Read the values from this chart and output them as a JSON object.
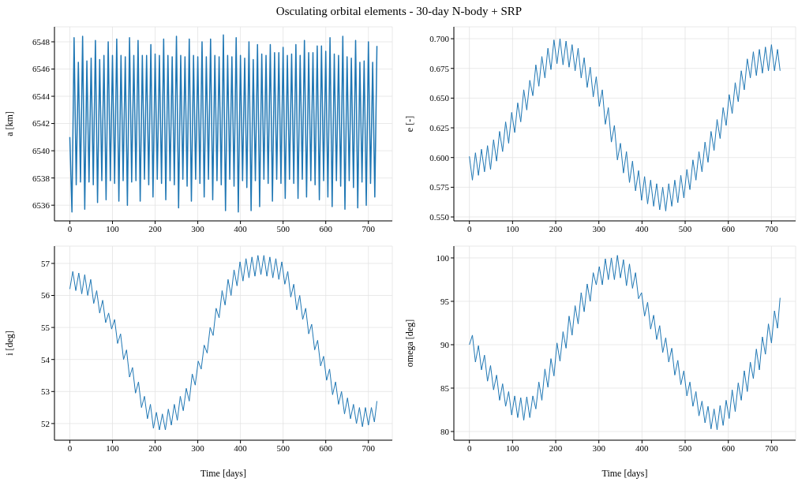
{
  "chart_data": [
    {
      "type": "line",
      "title": "Osculating orbital elements - 30-day N-body + SRP",
      "ylabel": "a [km]",
      "x": [
        0,
        5,
        10,
        15,
        20,
        25,
        30,
        35,
        40,
        45,
        50,
        55,
        60,
        65,
        70,
        75,
        80,
        85,
        90,
        95,
        100,
        105,
        110,
        115,
        120,
        125,
        130,
        135,
        140,
        145,
        150,
        155,
        160,
        165,
        170,
        175,
        180,
        185,
        190,
        195,
        200,
        205,
        210,
        215,
        220,
        225,
        230,
        235,
        240,
        245,
        250,
        255,
        260,
        265,
        270,
        275,
        280,
        285,
        290,
        295,
        300,
        305,
        310,
        315,
        320,
        325,
        330,
        335,
        340,
        345,
        350,
        355,
        360,
        365,
        370,
        375,
        380,
        385,
        390,
        395,
        400,
        405,
        410,
        415,
        420,
        425,
        430,
        435,
        440,
        445,
        450,
        455,
        460,
        465,
        470,
        475,
        480,
        485,
        490,
        495,
        500,
        505,
        510,
        515,
        520,
        525,
        530,
        535,
        540,
        545,
        550,
        555,
        560,
        565,
        570,
        575,
        580,
        585,
        590,
        595,
        600,
        605,
        610,
        615,
        620,
        625,
        630,
        635,
        640,
        645,
        650,
        655,
        660,
        665,
        670,
        675,
        680,
        685,
        690,
        695,
        700,
        705,
        710,
        715,
        720
      ],
      "series": [
        {
          "color": "#1f77b4",
          "values": [
            6541.0,
            6535.5,
            6548.3,
            6537.5,
            6546.5,
            6537.7,
            6548.4,
            6535.7,
            6546.6,
            6537.7,
            6546.8,
            6537.5,
            6548.1,
            6536.2,
            6546.7,
            6537.8,
            6547.0,
            6536.4,
            6548.0,
            6537.8,
            6547.0,
            6537.6,
            6548.2,
            6536.3,
            6547.0,
            6537.8,
            6546.9,
            6536.0,
            6548.3,
            6537.7,
            6547.0,
            6537.8,
            6548.1,
            6536.3,
            6547.0,
            6537.9,
            6547.0,
            6537.5,
            6547.8,
            6536.6,
            6547.1,
            6537.9,
            6547.0,
            6537.6,
            6548.2,
            6536.4,
            6547.0,
            6537.8,
            6546.9,
            6537.5,
            6548.4,
            6535.8,
            6547.0,
            6537.9,
            6546.9,
            6537.4,
            6548.2,
            6536.3,
            6547.0,
            6537.9,
            6546.9,
            6537.6,
            6548.0,
            6536.6,
            6546.9,
            6537.9,
            6548.2,
            6536.4,
            6547.0,
            6537.8,
            6546.9,
            6537.5,
            6548.5,
            6535.6,
            6547.0,
            6537.9,
            6546.9,
            6537.4,
            6548.3,
            6535.5,
            6547.0,
            6537.8,
            6546.8,
            6537.3,
            6548.0,
            6535.6,
            6546.7,
            6537.8,
            6547.8,
            6535.9,
            6547.1,
            6537.9,
            6547.0,
            6537.6,
            6547.8,
            6536.3,
            6547.2,
            6537.9,
            6547.2,
            6537.6,
            6547.6,
            6536.5,
            6547.0,
            6537.9,
            6547.1,
            6537.6,
            6547.8,
            6536.5,
            6547.0,
            6537.9,
            6548.1,
            6536.6,
            6547.2,
            6537.8,
            6547.2,
            6537.5,
            6547.7,
            6536.4,
            6547.7,
            6537.8,
            6547.3,
            6536.6,
            6548.3,
            6535.9,
            6547.1,
            6537.8,
            6547.0,
            6537.4,
            6548.4,
            6535.7,
            6546.9,
            6537.8,
            6546.8,
            6537.3,
            6548.1,
            6535.8,
            6546.5,
            6537.7,
            6546.6,
            6536.0,
            6548.0,
            6537.6,
            6546.5,
            6536.6,
            6547.7
          ]
        }
      ],
      "xlim": [
        -36,
        756
      ],
      "ylim": [
        6534.85,
        6549.1
      ],
      "xticks": [
        0,
        100,
        200,
        300,
        400,
        500,
        600,
        700
      ],
      "yticks": [
        6536,
        6538,
        6540,
        6542,
        6544,
        6546,
        6548
      ],
      "grid": true
    },
    {
      "type": "line",
      "ylabel": "e [-]",
      "x": [
        0,
        7,
        14,
        21,
        28,
        35,
        42,
        49,
        56,
        63,
        70,
        77,
        84,
        91,
        98,
        105,
        112,
        119,
        126,
        133,
        140,
        147,
        154,
        161,
        168,
        175,
        182,
        189,
        196,
        203,
        210,
        217,
        224,
        231,
        238,
        245,
        252,
        259,
        266,
        273,
        280,
        287,
        294,
        301,
        308,
        315,
        322,
        329,
        336,
        343,
        350,
        357,
        364,
        371,
        378,
        385,
        392,
        399,
        406,
        413,
        420,
        427,
        434,
        441,
        448,
        455,
        462,
        469,
        476,
        483,
        490,
        497,
        504,
        511,
        518,
        525,
        532,
        539,
        546,
        553,
        560,
        567,
        574,
        581,
        588,
        595,
        602,
        609,
        616,
        623,
        630,
        637,
        644,
        651,
        658,
        665,
        672,
        679,
        686,
        693,
        700,
        707,
        714,
        720
      ],
      "series": [
        {
          "color": "#1f77b4",
          "values": [
            0.601,
            0.581,
            0.604,
            0.585,
            0.607,
            0.588,
            0.61,
            0.59,
            0.615,
            0.597,
            0.622,
            0.605,
            0.63,
            0.612,
            0.638,
            0.621,
            0.646,
            0.63,
            0.657,
            0.64,
            0.665,
            0.652,
            0.678,
            0.66,
            0.685,
            0.667,
            0.692,
            0.674,
            0.699,
            0.679,
            0.7,
            0.678,
            0.698,
            0.676,
            0.695,
            0.673,
            0.692,
            0.667,
            0.684,
            0.659,
            0.676,
            0.651,
            0.668,
            0.643,
            0.657,
            0.628,
            0.642,
            0.613,
            0.627,
            0.598,
            0.612,
            0.587,
            0.605,
            0.579,
            0.597,
            0.572,
            0.589,
            0.564,
            0.584,
            0.561,
            0.581,
            0.559,
            0.578,
            0.556,
            0.575,
            0.555,
            0.578,
            0.559,
            0.581,
            0.562,
            0.585,
            0.566,
            0.59,
            0.573,
            0.598,
            0.581,
            0.605,
            0.588,
            0.613,
            0.596,
            0.622,
            0.606,
            0.632,
            0.616,
            0.642,
            0.627,
            0.653,
            0.637,
            0.663,
            0.647,
            0.673,
            0.657,
            0.683,
            0.667,
            0.689,
            0.669,
            0.691,
            0.671,
            0.693,
            0.673,
            0.695,
            0.673,
            0.691,
            0.673
          ]
        }
      ],
      "xlim": [
        -36,
        756
      ],
      "ylim": [
        0.5467,
        0.71
      ],
      "xticks": [
        0,
        100,
        200,
        300,
        400,
        500,
        600,
        700
      ],
      "yticks": [
        {
          "value": 0.55,
          "label": "0.550"
        },
        {
          "value": 0.575,
          "label": "0.575"
        },
        {
          "value": 0.6,
          "label": "0.600"
        },
        {
          "value": 0.625,
          "label": "0.625"
        },
        {
          "value": 0.65,
          "label": "0.650"
        },
        {
          "value": 0.675,
          "label": "0.675"
        },
        {
          "value": 0.7,
          "label": "0.700"
        }
      ],
      "grid": true
    },
    {
      "type": "line",
      "xlabel": "Time [days]",
      "ylabel": "i [deg]",
      "x": [
        0,
        7,
        14,
        21,
        28,
        35,
        42,
        49,
        56,
        63,
        70,
        77,
        84,
        91,
        98,
        105,
        112,
        119,
        126,
        133,
        140,
        147,
        154,
        161,
        168,
        175,
        182,
        189,
        196,
        203,
        210,
        217,
        224,
        231,
        238,
        245,
        252,
        259,
        266,
        273,
        280,
        287,
        294,
        301,
        308,
        315,
        322,
        329,
        336,
        343,
        350,
        357,
        364,
        371,
        378,
        385,
        392,
        399,
        406,
        413,
        420,
        427,
        434,
        441,
        448,
        455,
        462,
        469,
        476,
        483,
        490,
        497,
        504,
        511,
        518,
        525,
        532,
        539,
        546,
        553,
        560,
        567,
        574,
        581,
        588,
        595,
        602,
        609,
        616,
        623,
        630,
        637,
        644,
        651,
        658,
        665,
        672,
        679,
        686,
        693,
        700,
        707,
        714,
        720
      ],
      "series": [
        {
          "color": "#1f77b4",
          "values": [
            56.2,
            56.75,
            56.15,
            56.7,
            56.05,
            56.65,
            56.0,
            56.5,
            55.75,
            56.15,
            55.45,
            55.85,
            55.15,
            55.45,
            54.95,
            55.25,
            54.5,
            54.8,
            54.0,
            54.3,
            53.45,
            53.75,
            52.95,
            53.3,
            52.5,
            52.85,
            52.15,
            52.6,
            51.85,
            52.35,
            51.8,
            52.3,
            51.8,
            52.45,
            51.95,
            52.6,
            52.1,
            52.85,
            52.4,
            53.1,
            52.7,
            53.55,
            53.2,
            53.95,
            53.7,
            54.45,
            54.2,
            55.0,
            54.75,
            55.6,
            55.3,
            56.15,
            55.7,
            56.5,
            56.0,
            56.8,
            56.3,
            57.05,
            56.45,
            57.15,
            56.55,
            57.2,
            56.6,
            57.25,
            56.65,
            57.25,
            56.6,
            57.2,
            56.55,
            57.15,
            56.5,
            57.05,
            56.35,
            56.75,
            55.95,
            56.35,
            55.55,
            56.0,
            55.25,
            55.6,
            54.8,
            55.1,
            54.3,
            54.6,
            53.8,
            54.1,
            53.35,
            53.7,
            52.9,
            53.3,
            52.6,
            53.0,
            52.3,
            52.8,
            52.15,
            52.6,
            52.0,
            52.5,
            51.9,
            52.5,
            51.95,
            52.5,
            52.05,
            52.7
          ]
        }
      ],
      "xlim": [
        -36,
        756
      ],
      "ylim": [
        51.48,
        57.54
      ],
      "xticks": [
        0,
        100,
        200,
        300,
        400,
        500,
        600,
        700
      ],
      "yticks": [
        52,
        53,
        54,
        55,
        56,
        57
      ],
      "grid": true
    },
    {
      "type": "line",
      "xlabel": "Time [days]",
      "ylabel": "omega [deg]",
      "x": [
        0,
        7,
        14,
        21,
        28,
        35,
        42,
        49,
        56,
        63,
        70,
        77,
        84,
        91,
        98,
        105,
        112,
        119,
        126,
        133,
        140,
        147,
        154,
        161,
        168,
        175,
        182,
        189,
        196,
        203,
        210,
        217,
        224,
        231,
        238,
        245,
        252,
        259,
        266,
        273,
        280,
        287,
        294,
        301,
        308,
        315,
        322,
        329,
        336,
        343,
        350,
        357,
        364,
        371,
        378,
        385,
        392,
        399,
        406,
        413,
        420,
        427,
        434,
        441,
        448,
        455,
        462,
        469,
        476,
        483,
        490,
        497,
        504,
        511,
        518,
        525,
        532,
        539,
        546,
        553,
        560,
        567,
        574,
        581,
        588,
        595,
        602,
        609,
        616,
        623,
        630,
        637,
        644,
        651,
        658,
        665,
        672,
        679,
        686,
        693,
        700,
        707,
        714,
        720
      ],
      "series": [
        {
          "color": "#1f77b4",
          "values": [
            90.0,
            91.1,
            88.0,
            89.9,
            87.1,
            88.8,
            85.8,
            87.6,
            84.8,
            86.5,
            83.6,
            85.5,
            82.9,
            84.6,
            81.9,
            84.1,
            81.6,
            83.9,
            81.3,
            84.0,
            81.6,
            84.1,
            82.6,
            85.7,
            83.6,
            87.2,
            85.1,
            88.4,
            86.4,
            90.2,
            88.1,
            91.5,
            89.6,
            93.3,
            91.1,
            94.5,
            92.4,
            96.0,
            93.8,
            97.0,
            95.0,
            98.3,
            96.9,
            99.0,
            96.9,
            99.9,
            97.5,
            100.0,
            97.5,
            100.3,
            97.7,
            99.8,
            96.8,
            99.3,
            96.5,
            98.3,
            95.3,
            96.0,
            93.3,
            94.9,
            91.8,
            93.4,
            90.6,
            92.2,
            89.1,
            90.8,
            88.0,
            89.6,
            86.5,
            88.2,
            85.4,
            87.0,
            84.1,
            85.7,
            82.9,
            84.6,
            81.8,
            83.5,
            81.0,
            82.9,
            80.3,
            82.6,
            80.2,
            83.0,
            80.7,
            83.6,
            81.5,
            84.8,
            82.3,
            85.6,
            83.6,
            87.0,
            84.6,
            88.0,
            86.1,
            89.5,
            87.1,
            90.9,
            88.9,
            92.4,
            90.2,
            93.9,
            91.9,
            95.4
          ]
        }
      ],
      "xlim": [
        -36,
        756
      ],
      "ylim": [
        79.0,
        101.36
      ],
      "xticks": [
        0,
        100,
        200,
        300,
        400,
        500,
        600,
        700
      ],
      "yticks": [
        80,
        85,
        90,
        95,
        100
      ],
      "grid": true
    }
  ]
}
